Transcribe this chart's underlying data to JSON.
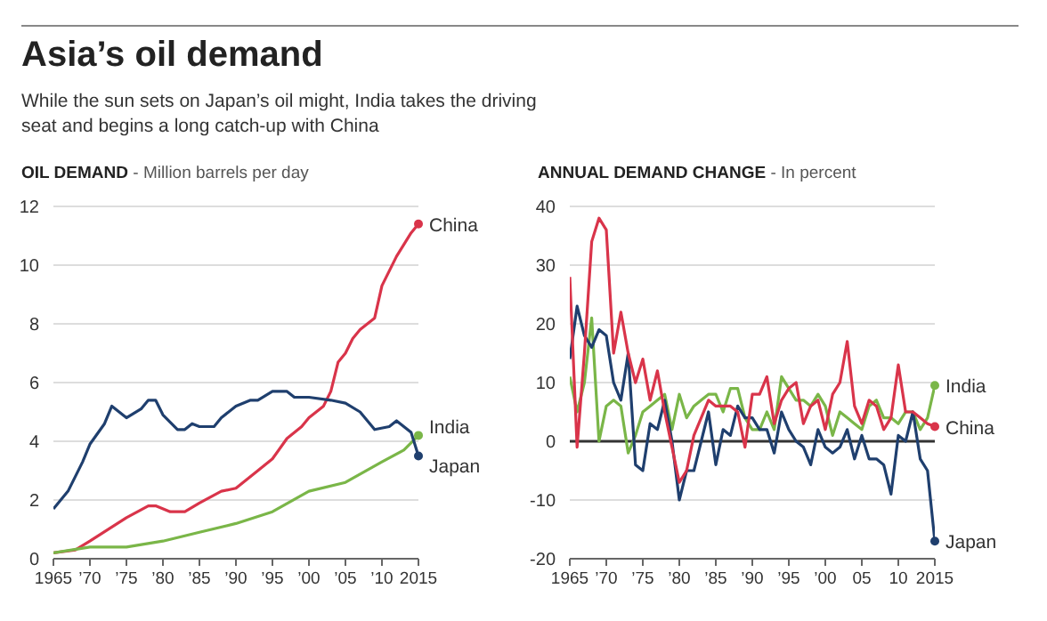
{
  "chart_data": [
    {
      "type": "line",
      "title": "Asia’s oil demand",
      "subtitle": "While the sun sets on Japan’s oil might, India takes the driving seat and begins a long catch-up with China",
      "ylabel": "OIL DEMAND - Million barrels per day",
      "xlim": [
        1965,
        2015
      ],
      "xticks": [
        {
          "value": 1965,
          "label": "1965"
        },
        {
          "value": 1970,
          "label": "’70"
        },
        {
          "value": 1975,
          "label": "’75"
        },
        {
          "value": 1980,
          "label": "’80"
        },
        {
          "value": 1985,
          "label": "’85"
        },
        {
          "value": 1990,
          "label": "’90"
        },
        {
          "value": 1995,
          "label": "’95"
        },
        {
          "value": 2000,
          "label": "’00"
        },
        {
          "value": 2005,
          "label": "’05"
        },
        {
          "value": 2010,
          "label": "’10"
        },
        {
          "value": 2015,
          "label": "2015"
        }
      ],
      "ylim": [
        0,
        12
      ],
      "yticks": [
        0,
        2,
        4,
        6,
        8,
        10,
        12
      ],
      "grid": "y",
      "series": [
        {
          "name": "China",
          "color": "#d9344a",
          "x": [
            1965,
            1968,
            1970,
            1975,
            1978,
            1979,
            1981,
            1983,
            1985,
            1988,
            1990,
            1993,
            1995,
            1997,
            1999,
            2000,
            2002,
            2003,
            2004,
            2005,
            2006,
            2007,
            2008,
            2009,
            2010,
            2011,
            2012,
            2013,
            2014,
            2015
          ],
          "values": [
            0.2,
            0.3,
            0.6,
            1.4,
            1.8,
            1.8,
            1.6,
            1.6,
            1.9,
            2.3,
            2.4,
            3.0,
            3.4,
            4.1,
            4.5,
            4.8,
            5.2,
            5.7,
            6.7,
            7.0,
            7.5,
            7.8,
            8.0,
            8.2,
            9.3,
            9.8,
            10.3,
            10.7,
            11.1,
            11.4
          ]
        },
        {
          "name": "India",
          "color": "#7ab648",
          "x": [
            1965,
            1970,
            1975,
            1980,
            1985,
            1990,
            1995,
            2000,
            2005,
            2010,
            2013,
            2015
          ],
          "values": [
            0.2,
            0.4,
            0.4,
            0.6,
            0.9,
            1.2,
            1.6,
            2.3,
            2.6,
            3.3,
            3.7,
            4.2
          ]
        },
        {
          "name": "Japan",
          "color": "#1f3f6e",
          "x": [
            1965,
            1967,
            1969,
            1970,
            1972,
            1973,
            1974,
            1975,
            1977,
            1978,
            1979,
            1980,
            1982,
            1983,
            1984,
            1985,
            1987,
            1988,
            1990,
            1992,
            1993,
            1995,
            1997,
            1998,
            2000,
            2003,
            2005,
            2007,
            2009,
            2011,
            2012,
            2014,
            2015
          ],
          "values": [
            1.7,
            2.3,
            3.3,
            3.9,
            4.6,
            5.2,
            5.0,
            4.8,
            5.1,
            5.4,
            5.4,
            4.9,
            4.4,
            4.4,
            4.6,
            4.5,
            4.5,
            4.8,
            5.2,
            5.4,
            5.4,
            5.7,
            5.7,
            5.5,
            5.5,
            5.4,
            5.3,
            5.0,
            4.4,
            4.5,
            4.7,
            4.3,
            3.5
          ]
        }
      ]
    },
    {
      "type": "line",
      "ylabel": "ANNUAL DEMAND CHANGE - In percent",
      "xlim": [
        1965,
        2015
      ],
      "xticks": [
        {
          "value": 1965,
          "label": "1965"
        },
        {
          "value": 1970,
          "label": "’70"
        },
        {
          "value": 1975,
          "label": "’75"
        },
        {
          "value": 1980,
          "label": "’80"
        },
        {
          "value": 1985,
          "label": "’85"
        },
        {
          "value": 1990,
          "label": "’90"
        },
        {
          "value": 1995,
          "label": "’95"
        },
        {
          "value": 2000,
          "label": "’00"
        },
        {
          "value": 2005,
          "label": "05"
        },
        {
          "value": 2010,
          "label": "10"
        },
        {
          "value": 2015,
          "label": "2015"
        }
      ],
      "ylim": [
        -20,
        40
      ],
      "yticks": [
        -20,
        -10,
        0,
        10,
        20,
        30,
        40
      ],
      "grid": "y",
      "ref_lines": [
        {
          "axis": "y",
          "value": 0,
          "color": "#333333"
        }
      ],
      "x": [
        1965,
        1966,
        1967,
        1968,
        1969,
        1970,
        1971,
        1972,
        1973,
        1974,
        1975,
        1976,
        1977,
        1978,
        1979,
        1980,
        1981,
        1982,
        1983,
        1984,
        1985,
        1986,
        1987,
        1988,
        1989,
        1990,
        1991,
        1992,
        1993,
        1994,
        1995,
        1996,
        1997,
        1998,
        1999,
        2000,
        2001,
        2002,
        2003,
        2004,
        2005,
        2006,
        2007,
        2008,
        2009,
        2010,
        2011,
        2012,
        2013,
        2014,
        2015
      ],
      "series": [
        {
          "name": "India",
          "color": "#7ab648",
          "values": [
            11,
            5,
            10,
            21,
            0,
            6,
            7,
            6,
            -2,
            1,
            5,
            6,
            7,
            8,
            2,
            8,
            4,
            6,
            7,
            8,
            8,
            5,
            9,
            9,
            4,
            2,
            2,
            5,
            2,
            11,
            9,
            7,
            7,
            6,
            8,
            6,
            1,
            5,
            4,
            3,
            2,
            6,
            7,
            4,
            4,
            3,
            5,
            5,
            2,
            4,
            9.5
          ]
        },
        {
          "name": "Japan",
          "color": "#1f3f6e",
          "values": [
            14,
            23,
            18,
            16,
            19,
            18,
            10,
            7,
            15,
            -4,
            -5,
            3,
            2,
            7,
            0,
            -10,
            -5,
            -5,
            0,
            5,
            -4,
            2,
            1,
            6,
            4,
            4,
            2,
            2,
            -2,
            5,
            2,
            0,
            -1,
            -4,
            2,
            -1,
            -2,
            -1,
            2,
            -3,
            1,
            -3,
            -3,
            -4,
            -9,
            1,
            0,
            5,
            -3,
            -5,
            -17
          ]
        },
        {
          "name": "China",
          "color": "#d9344a",
          "values": [
            28,
            -1,
            15,
            34,
            38,
            36,
            15,
            22,
            15,
            10,
            14,
            7,
            12,
            5,
            -1,
            -7,
            -5,
            1,
            4,
            7,
            6,
            6,
            6,
            5,
            -1,
            8,
            8,
            11,
            3,
            7,
            9,
            10,
            3,
            6,
            7,
            2,
            8,
            10,
            17,
            6,
            3,
            7,
            6,
            2,
            4,
            13,
            5,
            5,
            4,
            3,
            2.5
          ]
        }
      ]
    }
  ]
}
